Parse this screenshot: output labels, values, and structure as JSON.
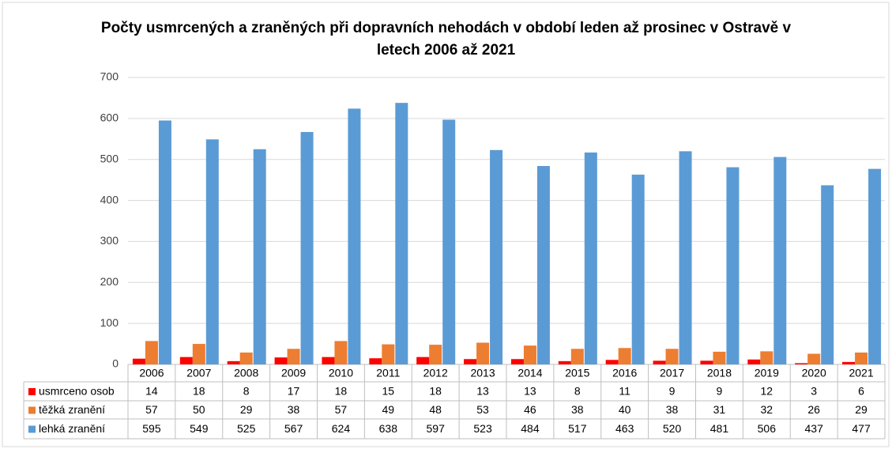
{
  "chart_data": {
    "type": "bar",
    "title": "Počty usmrcených a zraněných při dopravních nehodách v období leden až prosinec v Ostravě v letech 2006 až 2021",
    "categories": [
      "2006",
      "2007",
      "2008",
      "2009",
      "2010",
      "2011",
      "2012",
      "2013",
      "2014",
      "2015",
      "2016",
      "2017",
      "2018",
      "2019",
      "2020",
      "2021"
    ],
    "series": [
      {
        "name": "usmrceno osob",
        "color": "#ff0000",
        "values": [
          14,
          18,
          8,
          17,
          18,
          15,
          18,
          13,
          13,
          8,
          11,
          9,
          9,
          12,
          3,
          6
        ]
      },
      {
        "name": "těžká zranění",
        "color": "#ed7d31",
        "values": [
          57,
          50,
          29,
          38,
          57,
          49,
          48,
          53,
          46,
          38,
          40,
          38,
          31,
          32,
          26,
          29
        ]
      },
      {
        "name": "lehká zranění",
        "color": "#5b9bd5",
        "values": [
          595,
          549,
          525,
          567,
          624,
          638,
          597,
          523,
          484,
          517,
          463,
          520,
          481,
          506,
          437,
          477
        ]
      }
    ],
    "ylim": [
      0,
      700
    ],
    "yticks": [
      0,
      100,
      200,
      300,
      400,
      500,
      600,
      700
    ],
    "grid": true,
    "legend": "table"
  }
}
